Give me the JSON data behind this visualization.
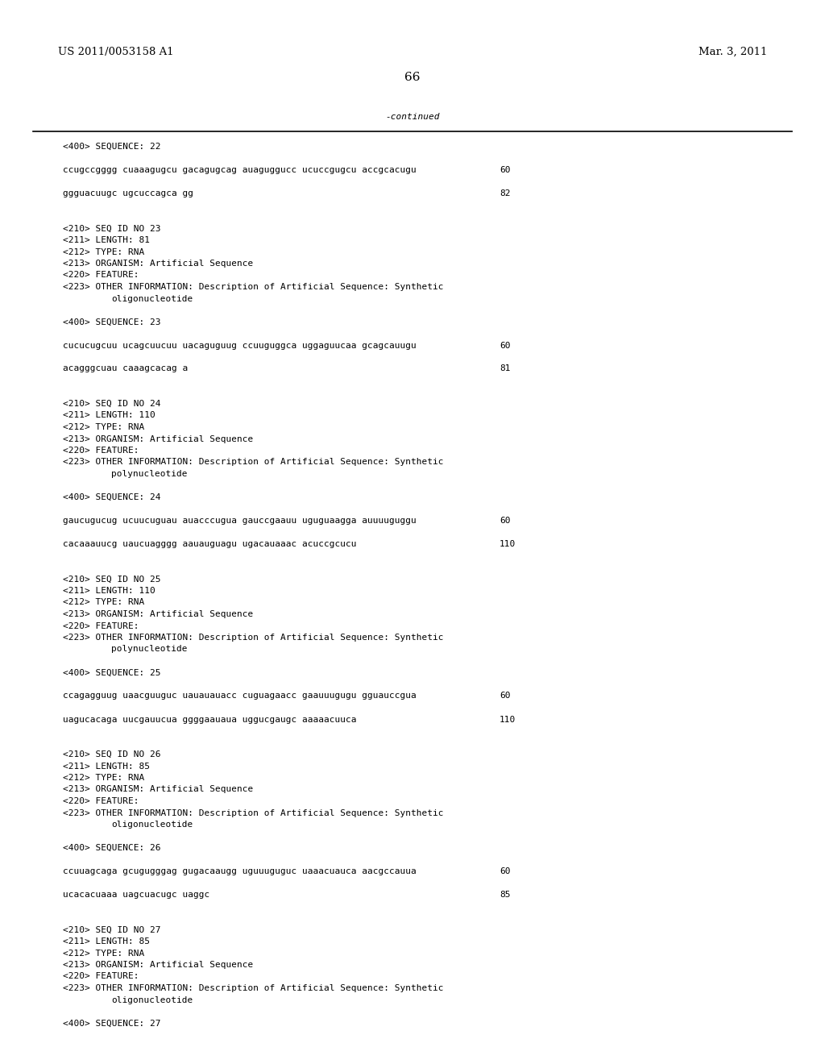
{
  "bg_color": "#ffffff",
  "header_left": "US 2011/0053158 A1",
  "header_right": "Mar. 3, 2011",
  "page_number": "66",
  "continued_label": "-continued",
  "content_lines": [
    {
      "type": "tag",
      "text": "<400> SEQUENCE: 22"
    },
    {
      "type": "blank"
    },
    {
      "type": "seq",
      "text": "ccugccgggg cuaaagugcu gacagugcag auaguggucc ucuccgugcu accgcacugu",
      "num": "60"
    },
    {
      "type": "blank"
    },
    {
      "type": "seq",
      "text": "ggguacuugc ugcuccagca gg",
      "num": "82"
    },
    {
      "type": "blank"
    },
    {
      "type": "blank"
    },
    {
      "type": "tag",
      "text": "<210> SEQ ID NO 23"
    },
    {
      "type": "tag",
      "text": "<211> LENGTH: 81"
    },
    {
      "type": "tag",
      "text": "<212> TYPE: RNA"
    },
    {
      "type": "tag",
      "text": "<213> ORGANISM: Artificial Sequence"
    },
    {
      "type": "tag",
      "text": "<220> FEATURE:"
    },
    {
      "type": "tag",
      "text": "<223> OTHER INFORMATION: Description of Artificial Sequence: Synthetic"
    },
    {
      "type": "tag_i",
      "text": "oligonucleotide"
    },
    {
      "type": "blank"
    },
    {
      "type": "tag",
      "text": "<400> SEQUENCE: 23"
    },
    {
      "type": "blank"
    },
    {
      "type": "seq",
      "text": "cucucugcuu ucagcuucuu uacaguguug ccuuguggca uggaguucaa gcagcauugu",
      "num": "60"
    },
    {
      "type": "blank"
    },
    {
      "type": "seq",
      "text": "acagggcuau caaagcacag a",
      "num": "81"
    },
    {
      "type": "blank"
    },
    {
      "type": "blank"
    },
    {
      "type": "tag",
      "text": "<210> SEQ ID NO 24"
    },
    {
      "type": "tag",
      "text": "<211> LENGTH: 110"
    },
    {
      "type": "tag",
      "text": "<212> TYPE: RNA"
    },
    {
      "type": "tag",
      "text": "<213> ORGANISM: Artificial Sequence"
    },
    {
      "type": "tag",
      "text": "<220> FEATURE:"
    },
    {
      "type": "tag",
      "text": "<223> OTHER INFORMATION: Description of Artificial Sequence: Synthetic"
    },
    {
      "type": "tag_i",
      "text": "polynucleotide"
    },
    {
      "type": "blank"
    },
    {
      "type": "tag",
      "text": "<400> SEQUENCE: 24"
    },
    {
      "type": "blank"
    },
    {
      "type": "seq",
      "text": "gaucugucug ucuucuguau auacccugua gauccgaauu uguguaagga auuuuguggu",
      "num": "60"
    },
    {
      "type": "blank"
    },
    {
      "type": "seq",
      "text": "cacaaauucg uaucuagggg aauauguagu ugacauaaac acuccgcucu",
      "num": "110"
    },
    {
      "type": "blank"
    },
    {
      "type": "blank"
    },
    {
      "type": "tag",
      "text": "<210> SEQ ID NO 25"
    },
    {
      "type": "tag",
      "text": "<211> LENGTH: 110"
    },
    {
      "type": "tag",
      "text": "<212> TYPE: RNA"
    },
    {
      "type": "tag",
      "text": "<213> ORGANISM: Artificial Sequence"
    },
    {
      "type": "tag",
      "text": "<220> FEATURE:"
    },
    {
      "type": "tag",
      "text": "<223> OTHER INFORMATION: Description of Artificial Sequence: Synthetic"
    },
    {
      "type": "tag_i",
      "text": "polynucleotide"
    },
    {
      "type": "blank"
    },
    {
      "type": "tag",
      "text": "<400> SEQUENCE: 25"
    },
    {
      "type": "blank"
    },
    {
      "type": "seq",
      "text": "ccagagguug uaacguuguc uauauauacc cuguagaacc gaauuugugu gguauccgua",
      "num": "60"
    },
    {
      "type": "blank"
    },
    {
      "type": "seq",
      "text": "uagucacaga uucgauucua ggggaauaua uggucgaugc aaaaacuuca",
      "num": "110"
    },
    {
      "type": "blank"
    },
    {
      "type": "blank"
    },
    {
      "type": "tag",
      "text": "<210> SEQ ID NO 26"
    },
    {
      "type": "tag",
      "text": "<211> LENGTH: 85"
    },
    {
      "type": "tag",
      "text": "<212> TYPE: RNA"
    },
    {
      "type": "tag",
      "text": "<213> ORGANISM: Artificial Sequence"
    },
    {
      "type": "tag",
      "text": "<220> FEATURE:"
    },
    {
      "type": "tag",
      "text": "<223> OTHER INFORMATION: Description of Artificial Sequence: Synthetic"
    },
    {
      "type": "tag_i",
      "text": "oligonucleotide"
    },
    {
      "type": "blank"
    },
    {
      "type": "tag",
      "text": "<400> SEQUENCE: 26"
    },
    {
      "type": "blank"
    },
    {
      "type": "seq",
      "text": "ccuuagcaga gcugugggag gugacaaugg uguuuguguc uaaacuauca aacgccauua",
      "num": "60"
    },
    {
      "type": "blank"
    },
    {
      "type": "seq",
      "text": "ucacacuaaa uagcuacugc uaggc",
      "num": "85"
    },
    {
      "type": "blank"
    },
    {
      "type": "blank"
    },
    {
      "type": "tag",
      "text": "<210> SEQ ID NO 27"
    },
    {
      "type": "tag",
      "text": "<211> LENGTH: 85"
    },
    {
      "type": "tag",
      "text": "<212> TYPE: RNA"
    },
    {
      "type": "tag",
      "text": "<213> ORGANISM: Artificial Sequence"
    },
    {
      "type": "tag",
      "text": "<220> FEATURE:"
    },
    {
      "type": "tag",
      "text": "<223> OTHER INFORMATION: Description of Artificial Sequence: Synthetic"
    },
    {
      "type": "tag_i",
      "text": "oligonucleotide"
    },
    {
      "type": "blank"
    },
    {
      "type": "tag",
      "text": "<400> SEQUENCE: 27"
    }
  ],
  "mono_fontsize": 8.0,
  "header_fontsize": 9.5,
  "page_num_fontsize": 11
}
